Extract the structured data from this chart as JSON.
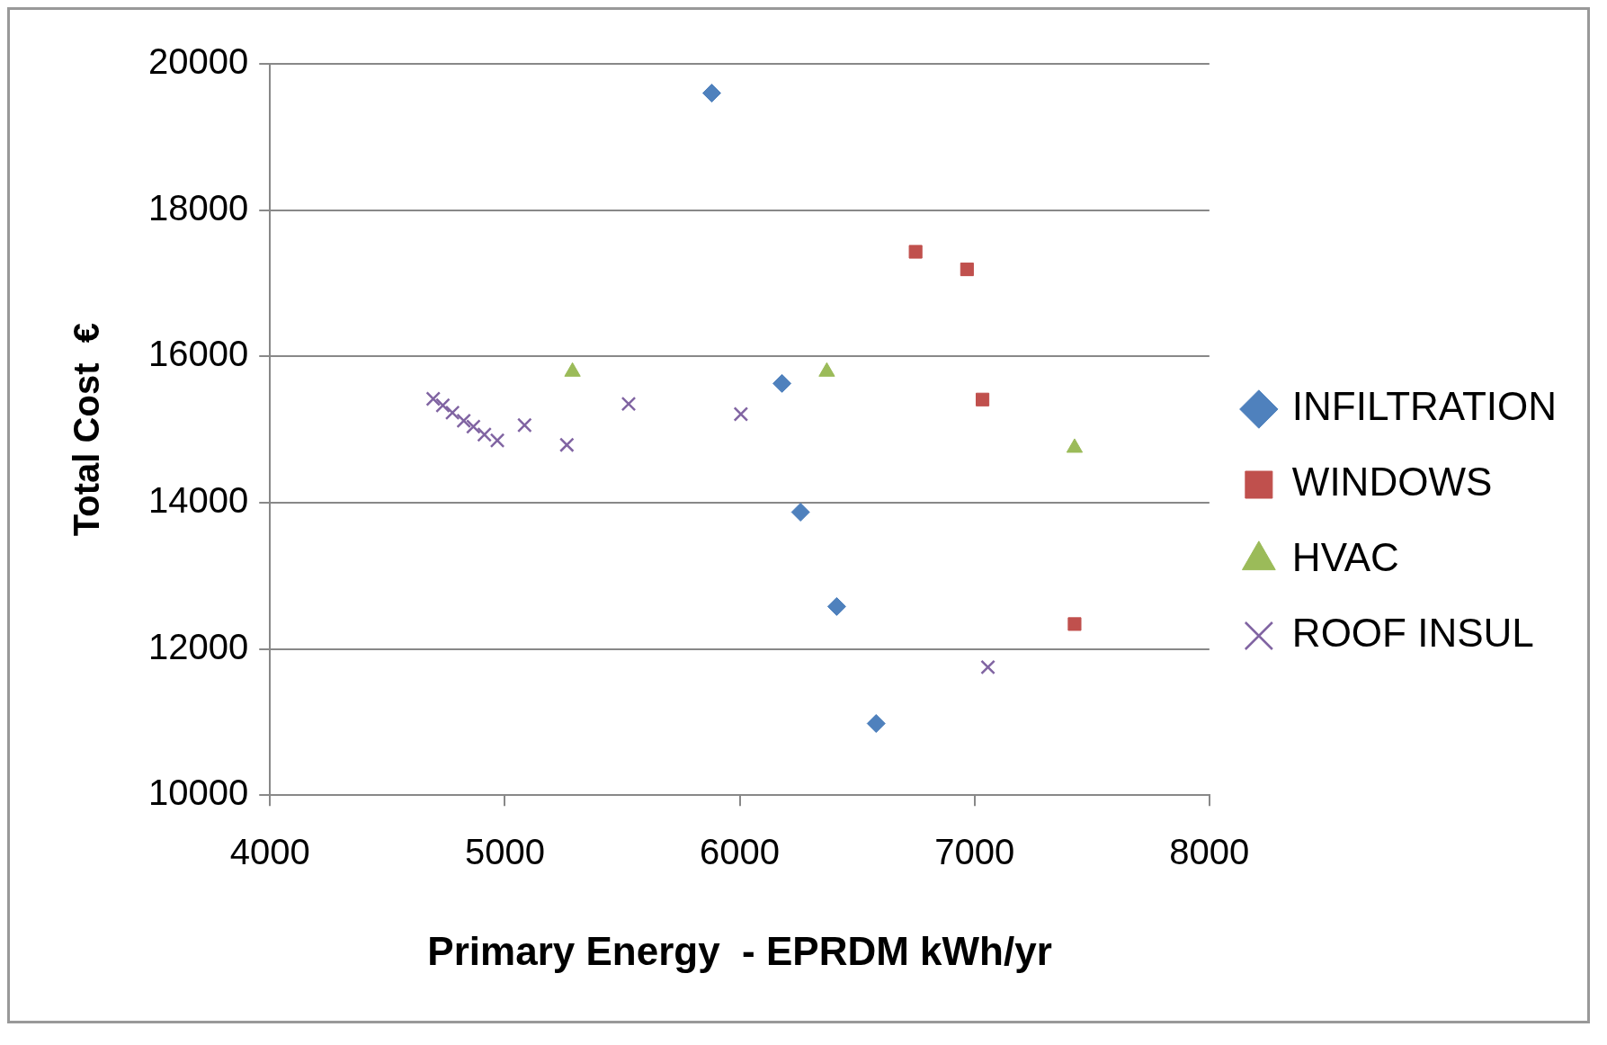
{
  "chart_data": {
    "type": "scatter",
    "xlabel": "Primary Energy  - EPRDM kWh/yr",
    "ylabel": "Total Cost  €",
    "xlim": [
      4000,
      8000
    ],
    "xticks": [
      4000,
      5000,
      6000,
      7000,
      8000
    ],
    "ylim": [
      10000,
      20000
    ],
    "yticks": [
      10000,
      12000,
      14000,
      16000,
      18000,
      20000
    ],
    "grid": "y",
    "legend": "right",
    "series": [
      {
        "name": "INFILTRATION",
        "color": "#4f81bd",
        "marker": "diamond",
        "x": [
          5881,
          6180,
          6259,
          6413,
          6581
        ],
        "values": [
          19600,
          15630,
          13870,
          12580,
          10980
        ]
      },
      {
        "name": "WINDOWS",
        "color": "#c0504d",
        "marker": "square",
        "x": [
          6749,
          6968,
          7034,
          7426
        ],
        "values": [
          17430,
          17190,
          15410,
          12340
        ]
      },
      {
        "name": "HVAC",
        "color": "#9bbb59",
        "marker": "triangle",
        "x": [
          5288,
          6371,
          7426
        ],
        "values": [
          15790,
          15790,
          14750
        ]
      },
      {
        "name": "ROOF INSUL",
        "color": "#8064a2",
        "marker": "cross",
        "x": [
          4695,
          4736,
          4777,
          4825,
          4866,
          4913,
          4968,
          5084,
          5264,
          5527,
          6005,
          7057
        ],
        "values": [
          15420,
          15330,
          15230,
          15120,
          15040,
          14930,
          14850,
          15060,
          14790,
          15350,
          15210,
          11750
        ]
      }
    ]
  }
}
